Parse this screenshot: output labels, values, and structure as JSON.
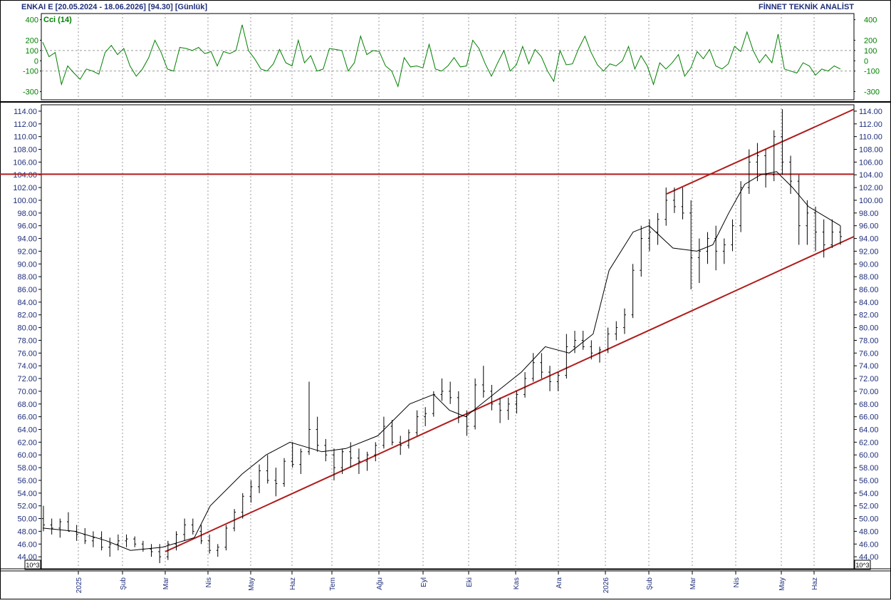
{
  "header": {
    "title": "ENKAI E  [20.05.2024 - 18.06.2026]  [94.30]  [Günlük]",
    "brand": "FİNNET TEKNİK ANALİST"
  },
  "cci_panel": {
    "label": "Cci (14)",
    "y_ticks": [
      "400",
      "200",
      "100",
      "0",
      "-100",
      "-300"
    ],
    "reference_levels": [
      100,
      -100
    ],
    "ylim": [
      -380,
      460
    ],
    "color": "#008000"
  },
  "price_panel": {
    "scale_label": "10^3",
    "ylim": [
      42,
      115
    ]
  },
  "x_axis": {
    "month_labels": [
      "2025",
      "Şub",
      "Mar",
      "Nis",
      "May",
      "Haz",
      "Tem",
      "Ağu",
      "Eyl",
      "Eki",
      "Kas",
      "Ara",
      "2026",
      "Şub",
      "Mar",
      "Nis",
      "May",
      "Haz"
    ]
  },
  "colors": {
    "trendline": "#b01c1c",
    "price_bars": "#000000",
    "moving_average": "#000000",
    "cci_line": "#008000",
    "axis_text": "#1f2f7a"
  },
  "chart_data": {
    "type": "line",
    "title": "ENKAI E",
    "date_range": [
      "20.05.2024",
      "18.06.2026"
    ],
    "last_close": 94.3,
    "timeframe": "Günlük",
    "price_ticks": [
      44,
      46,
      48,
      50,
      52,
      54,
      56,
      58,
      60,
      62,
      64,
      66,
      68,
      70,
      72,
      74,
      76,
      78,
      80,
      82,
      84,
      86,
      88,
      90,
      92,
      94,
      96,
      98,
      100,
      102,
      104,
      106,
      108,
      110,
      112,
      114
    ],
    "months": [
      "2025",
      "Şub",
      "Mar",
      "Nis",
      "May",
      "Haz",
      "Tem",
      "Ağu",
      "Eyl",
      "Eki",
      "Kas",
      "Ara",
      "2026",
      "Şub",
      "Mar",
      "Nis",
      "May",
      "Haz"
    ],
    "horizontal_line": 104.1,
    "trendlines": [
      {
        "name": "support",
        "from": {
          "x": "Mar 2025",
          "y": 44.8
        },
        "to": {
          "x": "end",
          "y": 94.3
        }
      },
      {
        "name": "resistance",
        "from": {
          "x": "Şub 2026",
          "y": 101.0
        },
        "to": {
          "x": "end",
          "y": 114.3
        }
      }
    ],
    "series": [
      {
        "type": "ohlc",
        "bars": [
          [
            50,
            52,
            48,
            49
          ],
          [
            49,
            50,
            47.5,
            48.5
          ],
          [
            48.5,
            50,
            47,
            49.5
          ],
          [
            49.5,
            51,
            48,
            48
          ],
          [
            48,
            49,
            46.5,
            47.5
          ],
          [
            47.5,
            48.5,
            46,
            46.5
          ],
          [
            46.5,
            48,
            45.5,
            47
          ],
          [
            47,
            48,
            45,
            45.5
          ],
          [
            45.5,
            47,
            44,
            46
          ],
          [
            46,
            47.5,
            45,
            46.5
          ],
          [
            46.5,
            47.5,
            45.5,
            46.8
          ],
          [
            46.8,
            47.2,
            45.5,
            46
          ],
          [
            46,
            46.5,
            44.8,
            45.2
          ],
          [
            45.2,
            46,
            44,
            44.8
          ],
          [
            44.8,
            46,
            43,
            44
          ],
          [
            44,
            46.5,
            43.5,
            46
          ],
          [
            46,
            48,
            45,
            47.5
          ],
          [
            47.5,
            50,
            46.5,
            49
          ],
          [
            49,
            50,
            47.5,
            48
          ],
          [
            48,
            49,
            46,
            46.5
          ],
          [
            46.5,
            47.5,
            44.5,
            45
          ],
          [
            45,
            46,
            44,
            45.5
          ],
          [
            45.5,
            49,
            45,
            48.5
          ],
          [
            48.5,
            51.5,
            48,
            51
          ],
          [
            51,
            54,
            50,
            53.5
          ],
          [
            53.5,
            56,
            52.5,
            55
          ],
          [
            55,
            58.5,
            54,
            57.5
          ],
          [
            57.5,
            60,
            55.5,
            56
          ],
          [
            56,
            58,
            53.5,
            55.5
          ],
          [
            55.5,
            59.5,
            55,
            59
          ],
          [
            59,
            62,
            58,
            58.5
          ],
          [
            58.5,
            61,
            57,
            60.5
          ],
          [
            60.5,
            71.5,
            60,
            64
          ],
          [
            64,
            66,
            60.5,
            61.5
          ],
          [
            61.5,
            62.5,
            59,
            60
          ],
          [
            60,
            61,
            56,
            58
          ],
          [
            58,
            61,
            57,
            60.5
          ],
          [
            60.5,
            62,
            58,
            59.5
          ],
          [
            59.5,
            61,
            57,
            59
          ],
          [
            59,
            60.5,
            57.5,
            60
          ],
          [
            60,
            62,
            59,
            61.5
          ],
          [
            61.5,
            66,
            61,
            64.5
          ],
          [
            64.5,
            65.5,
            61.5,
            62
          ],
          [
            62,
            63,
            60,
            61.5
          ],
          [
            61.5,
            64,
            61,
            63.5
          ],
          [
            63.5,
            67,
            63,
            66
          ],
          [
            66,
            67.5,
            64.5,
            66.5
          ],
          [
            66.5,
            70,
            66,
            69.5
          ],
          [
            69.5,
            72,
            68.5,
            70
          ],
          [
            70,
            71.5,
            68,
            69
          ],
          [
            69,
            70,
            65,
            66
          ],
          [
            66,
            67,
            63,
            64.5
          ],
          [
            64.5,
            72,
            64,
            71
          ],
          [
            71,
            74,
            69,
            70
          ],
          [
            70,
            71,
            67,
            68
          ],
          [
            68,
            69,
            65,
            67
          ],
          [
            67,
            69,
            65.5,
            68
          ],
          [
            68,
            70,
            66.5,
            69.5
          ],
          [
            69.5,
            73,
            69,
            72
          ],
          [
            72,
            76,
            71.5,
            74.5
          ],
          [
            74.5,
            76,
            72,
            73
          ],
          [
            73,
            74,
            70,
            71.5
          ],
          [
            71.5,
            73,
            70,
            72.5
          ],
          [
            72.5,
            79,
            72,
            77
          ],
          [
            77,
            79.5,
            76,
            78
          ],
          [
            78,
            79.5,
            76.5,
            77
          ],
          [
            77,
            78,
            75,
            76
          ],
          [
            76,
            77,
            74.5,
            76.5
          ],
          [
            76.5,
            80,
            76,
            79
          ],
          [
            79,
            81,
            78,
            80
          ],
          [
            80,
            83,
            79,
            82
          ],
          [
            82,
            90,
            81.5,
            89
          ],
          [
            89,
            96,
            88,
            94
          ],
          [
            94,
            97,
            92,
            95
          ],
          [
            95,
            98,
            93,
            97
          ],
          [
            97,
            102,
            96,
            100
          ],
          [
            100,
            102,
            98,
            99
          ],
          [
            99,
            102,
            97,
            98
          ],
          [
            98,
            100,
            86,
            91
          ],
          [
            91,
            94,
            87,
            92
          ],
          [
            92,
            95,
            90,
            94
          ],
          [
            94,
            96,
            89,
            92
          ],
          [
            92,
            94,
            90,
            93
          ],
          [
            93,
            97,
            92,
            96
          ],
          [
            96,
            103,
            95,
            102
          ],
          [
            102,
            108,
            101,
            106
          ],
          [
            106,
            109,
            103,
            107
          ],
          [
            107,
            108,
            102,
            104
          ],
          [
            104,
            111,
            103,
            110
          ],
          [
            110,
            114.3,
            104,
            106
          ],
          [
            106,
            107,
            101,
            103
          ],
          [
            103,
            104,
            93,
            96
          ],
          [
            96,
            100,
            93,
            98
          ],
          [
            98,
            99,
            92,
            95
          ],
          [
            95,
            97,
            91,
            93
          ],
          [
            93,
            97,
            92.5,
            95
          ],
          [
            95,
            96,
            93,
            94.3
          ]
        ]
      },
      {
        "name": "",
        "type": "moving_average",
        "x_frac": [
          0,
          0.04,
          0.08,
          0.11,
          0.15,
          0.19,
          0.21,
          0.25,
          0.28,
          0.31,
          0.35,
          0.38,
          0.42,
          0.46,
          0.49,
          0.51,
          0.53,
          0.57,
          0.6,
          0.63,
          0.66,
          0.69,
          0.71,
          0.74,
          0.76,
          0.79,
          0.82,
          0.84,
          0.86,
          0.88,
          0.9,
          0.92,
          0.94,
          0.96,
          0.98,
          1.0
        ],
        "values": [
          48.5,
          48,
          46.5,
          45,
          45.5,
          47,
          52,
          57,
          60,
          62,
          60.5,
          61,
          63,
          68,
          69.5,
          67,
          66,
          70,
          73,
          77,
          76,
          79,
          89,
          95,
          96,
          92.5,
          92,
          93,
          98,
          102.5,
          104,
          104.5,
          102,
          99,
          97.5,
          96
        ]
      },
      {
        "name": "Cci (14)",
        "type": "oscillator",
        "values": [
          180,
          40,
          80,
          -230,
          -50,
          -120,
          -180,
          -80,
          -100,
          -130,
          80,
          150,
          60,
          120,
          -50,
          -150,
          -80,
          30,
          200,
          80,
          -80,
          -100,
          130,
          120,
          100,
          130,
          70,
          90,
          -50,
          90,
          70,
          100,
          350,
          100,
          20,
          -80,
          -100,
          -30,
          110,
          -20,
          -50,
          200,
          -20,
          50,
          -100,
          -80,
          120,
          110,
          100,
          -100,
          -20,
          240,
          60,
          100,
          90,
          -50,
          -100,
          -250,
          30,
          -60,
          -50,
          -70,
          160,
          -80,
          -100,
          -50,
          30,
          -60,
          -50,
          200,
          120,
          -30,
          -150,
          -20,
          100,
          -100,
          -40,
          140,
          -30,
          110,
          40,
          -100,
          -200,
          100,
          -40,
          -30,
          120,
          240,
          80,
          -40,
          -100,
          -30,
          -50,
          0,
          140,
          -80,
          50,
          -50,
          -230,
          -20,
          -80,
          -20,
          60,
          -150,
          -70,
          90,
          20,
          110,
          -50,
          -80,
          -30,
          140,
          90,
          280,
          100,
          -20,
          60,
          -20,
          260,
          -80,
          -100,
          -120,
          -20,
          -50,
          -140,
          -80,
          -100,
          -50,
          -80
        ]
      }
    ]
  }
}
